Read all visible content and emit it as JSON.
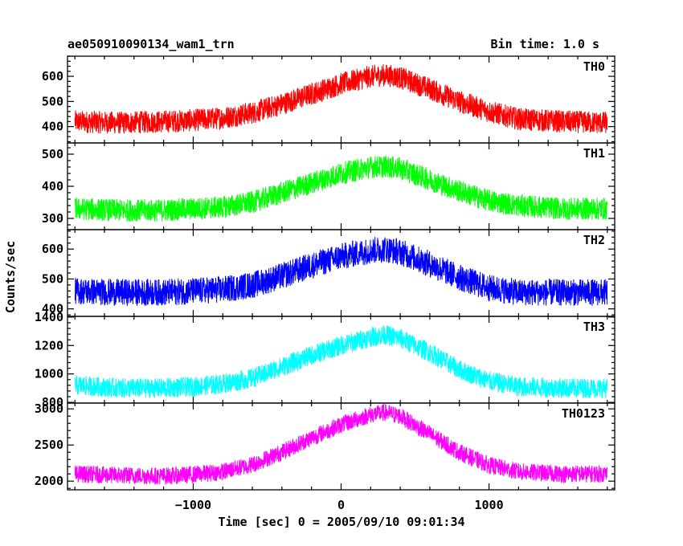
{
  "chart_data": {
    "type": "line",
    "title": "ae050910090134_wam1_trn",
    "subtitle": "Bin time: 1.0 s",
    "xlabel": "Time [sec] 0 = 2005/09/10 09:01:34",
    "ylabel": "Counts/sec",
    "xlim": [
      -1850,
      1850
    ],
    "xticks": [
      -1000,
      0,
      1000
    ],
    "xtick_labels": [
      "−1000",
      "0",
      "1000"
    ],
    "x": [
      -1800,
      -1500,
      -1200,
      -1000,
      -800,
      -600,
      -400,
      -200,
      0,
      200,
      300,
      400,
      600,
      800,
      1000,
      1200,
      1500,
      1800
    ],
    "series": [
      {
        "name": "TH0",
        "color": "#ff0000",
        "ylim": [
          335,
          680
        ],
        "yticks": [
          400,
          500,
          600
        ],
        "values": [
          420,
          415,
          420,
          425,
          435,
          455,
          490,
          530,
          570,
          600,
          605,
          595,
          550,
          500,
          460,
          430,
          420,
          415
        ],
        "noise": 45
      },
      {
        "name": "TH1",
        "color": "#00ff00",
        "ylim": [
          265,
          535
        ],
        "yticks": [
          300,
          400,
          500
        ],
        "values": [
          330,
          325,
          325,
          330,
          335,
          350,
          380,
          410,
          440,
          460,
          462,
          455,
          420,
          385,
          355,
          340,
          330,
          330
        ],
        "noise": 35
      },
      {
        "name": "TH2",
        "color": "#0000ff",
        "ylim": [
          375,
          665
        ],
        "yticks": [
          400,
          500,
          600
        ],
        "values": [
          460,
          455,
          455,
          460,
          465,
          480,
          510,
          545,
          575,
          595,
          600,
          590,
          550,
          505,
          470,
          455,
          455,
          455
        ],
        "noise": 45
      },
      {
        "name": "TH3",
        "color": "#00ffff",
        "ylim": [
          795,
          1405
        ],
        "yticks": [
          800,
          1000,
          1200,
          1400
        ],
        "values": [
          920,
          900,
          900,
          910,
          930,
          970,
          1050,
          1130,
          1200,
          1260,
          1275,
          1250,
          1150,
          1030,
          950,
          910,
          900,
          900
        ],
        "noise": 70
      },
      {
        "name": "TH0123",
        "color": "#ff00ff",
        "ylim": [
          1880,
          3080
        ],
        "yticks": [
          2000,
          2500,
          3000
        ],
        "values": [
          2100,
          2080,
          2070,
          2090,
          2130,
          2230,
          2400,
          2600,
          2780,
          2920,
          2950,
          2900,
          2650,
          2400,
          2220,
          2130,
          2100,
          2100
        ],
        "noise": 120
      }
    ]
  }
}
